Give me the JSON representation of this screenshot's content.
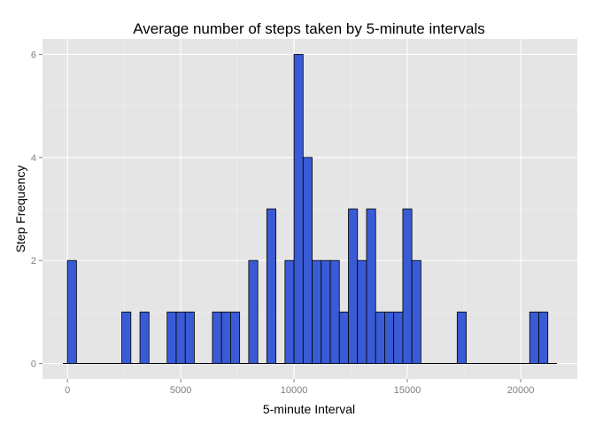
{
  "chart_data": {
    "type": "bar",
    "title": "Average number of steps taken by 5-minute intervals",
    "xlabel": "5-minute Interval",
    "ylabel": "Step Frequency",
    "xlim": [
      -1100,
      22500
    ],
    "ylim": [
      -0.3,
      6.3
    ],
    "x_ticks": [
      0,
      5000,
      10000,
      15000,
      20000
    ],
    "x_tick_labels": [
      "0",
      "5000",
      "10000",
      "15000",
      "20000"
    ],
    "y_ticks": [
      0,
      2,
      4,
      6
    ],
    "y_tick_labels": [
      "0",
      "2",
      "4",
      "6"
    ],
    "bin_width": 400,
    "series": [
      {
        "bins": [
          {
            "x": 200,
            "count": 2
          },
          {
            "x": 2600,
            "count": 1
          },
          {
            "x": 3400,
            "count": 1
          },
          {
            "x": 4600,
            "count": 1
          },
          {
            "x": 5000,
            "count": 1
          },
          {
            "x": 5400,
            "count": 1
          },
          {
            "x": 6600,
            "count": 1
          },
          {
            "x": 7000,
            "count": 1
          },
          {
            "x": 7400,
            "count": 1
          },
          {
            "x": 8200,
            "count": 2
          },
          {
            "x": 9000,
            "count": 3
          },
          {
            "x": 9800,
            "count": 2
          },
          {
            "x": 10200,
            "count": 6
          },
          {
            "x": 10600,
            "count": 4
          },
          {
            "x": 11000,
            "count": 2
          },
          {
            "x": 11400,
            "count": 2
          },
          {
            "x": 11800,
            "count": 2
          },
          {
            "x": 12200,
            "count": 1
          },
          {
            "x": 12600,
            "count": 3
          },
          {
            "x": 13000,
            "count": 2
          },
          {
            "x": 13400,
            "count": 3
          },
          {
            "x": 13800,
            "count": 1
          },
          {
            "x": 14200,
            "count": 1
          },
          {
            "x": 14600,
            "count": 1
          },
          {
            "x": 15000,
            "count": 3
          },
          {
            "x": 15400,
            "count": 2
          },
          {
            "x": 17400,
            "count": 1
          },
          {
            "x": 20600,
            "count": 1
          },
          {
            "x": 21000,
            "count": 1
          }
        ]
      }
    ],
    "baseline_range": [
      -200,
      21600
    ],
    "grid": true,
    "colors": {
      "panel": "#e5e5e5",
      "grid_major": "#ffffff",
      "grid_minor": "#f2f2f2",
      "bar_fill": "#3a5bd6",
      "bar_outline": "#000000",
      "tick_label": "#7f7f7f",
      "tick_mark": "#7f7f7f"
    }
  }
}
